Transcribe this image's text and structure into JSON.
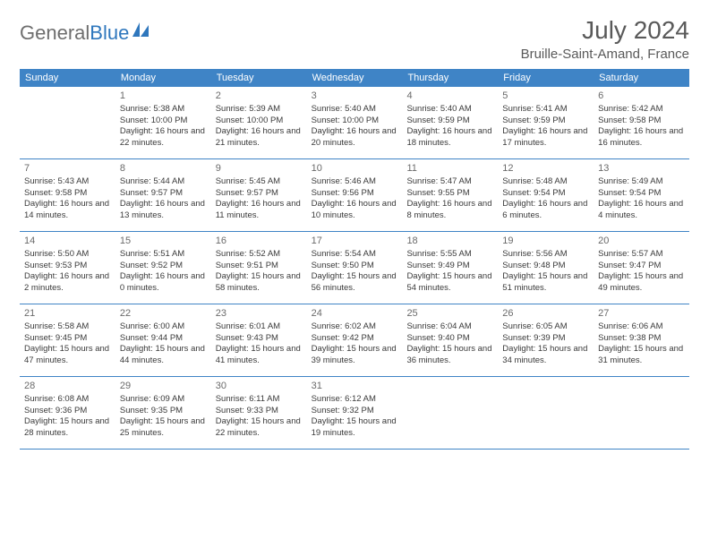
{
  "logo": {
    "text1": "General",
    "text2": "Blue"
  },
  "title": "July 2024",
  "location": "Bruille-Saint-Amand, France",
  "colors": {
    "header_bg": "#3f84c6",
    "header_text": "#ffffff",
    "border": "#3f84c6",
    "body_text": "#3a3a3a",
    "daynum": "#6a6a6a",
    "logo_gray": "#6e6e6e",
    "logo_blue": "#2f77bd",
    "title_color": "#595959"
  },
  "weekdays": [
    "Sunday",
    "Monday",
    "Tuesday",
    "Wednesday",
    "Thursday",
    "Friday",
    "Saturday"
  ],
  "weeks": [
    [
      null,
      {
        "n": "1",
        "sr": "5:38 AM",
        "ss": "10:00 PM",
        "dl": "16 hours and 22 minutes."
      },
      {
        "n": "2",
        "sr": "5:39 AM",
        "ss": "10:00 PM",
        "dl": "16 hours and 21 minutes."
      },
      {
        "n": "3",
        "sr": "5:40 AM",
        "ss": "10:00 PM",
        "dl": "16 hours and 20 minutes."
      },
      {
        "n": "4",
        "sr": "5:40 AM",
        "ss": "9:59 PM",
        "dl": "16 hours and 18 minutes."
      },
      {
        "n": "5",
        "sr": "5:41 AM",
        "ss": "9:59 PM",
        "dl": "16 hours and 17 minutes."
      },
      {
        "n": "6",
        "sr": "5:42 AM",
        "ss": "9:58 PM",
        "dl": "16 hours and 16 minutes."
      }
    ],
    [
      {
        "n": "7",
        "sr": "5:43 AM",
        "ss": "9:58 PM",
        "dl": "16 hours and 14 minutes."
      },
      {
        "n": "8",
        "sr": "5:44 AM",
        "ss": "9:57 PM",
        "dl": "16 hours and 13 minutes."
      },
      {
        "n": "9",
        "sr": "5:45 AM",
        "ss": "9:57 PM",
        "dl": "16 hours and 11 minutes."
      },
      {
        "n": "10",
        "sr": "5:46 AM",
        "ss": "9:56 PM",
        "dl": "16 hours and 10 minutes."
      },
      {
        "n": "11",
        "sr": "5:47 AM",
        "ss": "9:55 PM",
        "dl": "16 hours and 8 minutes."
      },
      {
        "n": "12",
        "sr": "5:48 AM",
        "ss": "9:54 PM",
        "dl": "16 hours and 6 minutes."
      },
      {
        "n": "13",
        "sr": "5:49 AM",
        "ss": "9:54 PM",
        "dl": "16 hours and 4 minutes."
      }
    ],
    [
      {
        "n": "14",
        "sr": "5:50 AM",
        "ss": "9:53 PM",
        "dl": "16 hours and 2 minutes."
      },
      {
        "n": "15",
        "sr": "5:51 AM",
        "ss": "9:52 PM",
        "dl": "16 hours and 0 minutes."
      },
      {
        "n": "16",
        "sr": "5:52 AM",
        "ss": "9:51 PM",
        "dl": "15 hours and 58 minutes."
      },
      {
        "n": "17",
        "sr": "5:54 AM",
        "ss": "9:50 PM",
        "dl": "15 hours and 56 minutes."
      },
      {
        "n": "18",
        "sr": "5:55 AM",
        "ss": "9:49 PM",
        "dl": "15 hours and 54 minutes."
      },
      {
        "n": "19",
        "sr": "5:56 AM",
        "ss": "9:48 PM",
        "dl": "15 hours and 51 minutes."
      },
      {
        "n": "20",
        "sr": "5:57 AM",
        "ss": "9:47 PM",
        "dl": "15 hours and 49 minutes."
      }
    ],
    [
      {
        "n": "21",
        "sr": "5:58 AM",
        "ss": "9:45 PM",
        "dl": "15 hours and 47 minutes."
      },
      {
        "n": "22",
        "sr": "6:00 AM",
        "ss": "9:44 PM",
        "dl": "15 hours and 44 minutes."
      },
      {
        "n": "23",
        "sr": "6:01 AM",
        "ss": "9:43 PM",
        "dl": "15 hours and 41 minutes."
      },
      {
        "n": "24",
        "sr": "6:02 AM",
        "ss": "9:42 PM",
        "dl": "15 hours and 39 minutes."
      },
      {
        "n": "25",
        "sr": "6:04 AM",
        "ss": "9:40 PM",
        "dl": "15 hours and 36 minutes."
      },
      {
        "n": "26",
        "sr": "6:05 AM",
        "ss": "9:39 PM",
        "dl": "15 hours and 34 minutes."
      },
      {
        "n": "27",
        "sr": "6:06 AM",
        "ss": "9:38 PM",
        "dl": "15 hours and 31 minutes."
      }
    ],
    [
      {
        "n": "28",
        "sr": "6:08 AM",
        "ss": "9:36 PM",
        "dl": "15 hours and 28 minutes."
      },
      {
        "n": "29",
        "sr": "6:09 AM",
        "ss": "9:35 PM",
        "dl": "15 hours and 25 minutes."
      },
      {
        "n": "30",
        "sr": "6:11 AM",
        "ss": "9:33 PM",
        "dl": "15 hours and 22 minutes."
      },
      {
        "n": "31",
        "sr": "6:12 AM",
        "ss": "9:32 PM",
        "dl": "15 hours and 19 minutes."
      },
      null,
      null,
      null
    ]
  ],
  "labels": {
    "sunrise": "Sunrise:",
    "sunset": "Sunset:",
    "daylight": "Daylight:"
  }
}
